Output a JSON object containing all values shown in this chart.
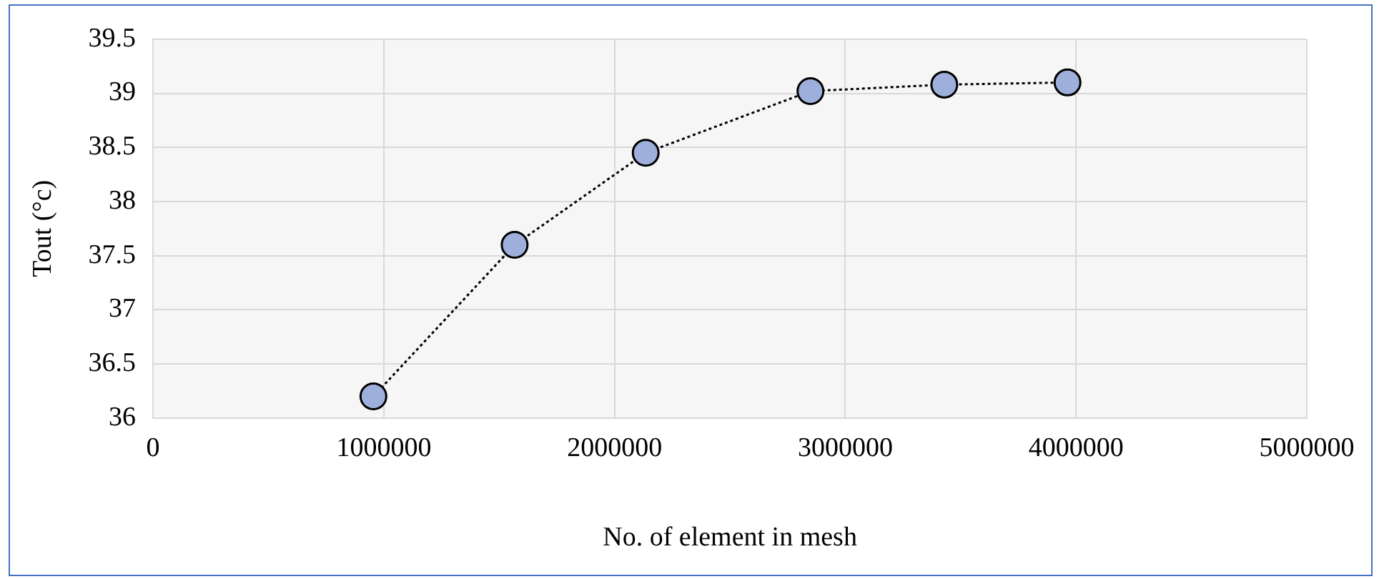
{
  "chart_data": {
    "type": "line",
    "xlabel": "No. of element in mesh",
    "ylabel": "Tout (°c)",
    "x": [
      955000,
      1567000,
      2135000,
      2849000,
      3429000,
      3963000
    ],
    "series": [
      {
        "color": "#9fafdc",
        "values": [
          36.2,
          37.6,
          38.45,
          39.02,
          39.08,
          39.1
        ]
      }
    ],
    "xlim": [
      0,
      5000000
    ],
    "xticks": [
      0,
      1000000,
      2000000,
      3000000,
      4000000,
      5000000
    ],
    "ylim": [
      36,
      39.5
    ],
    "yticks": [
      36,
      36.5,
      37,
      37.5,
      38,
      38.5,
      39,
      39.5
    ],
    "grid": true,
    "legend": false,
    "marker": "circle",
    "line_style": "dotted"
  }
}
